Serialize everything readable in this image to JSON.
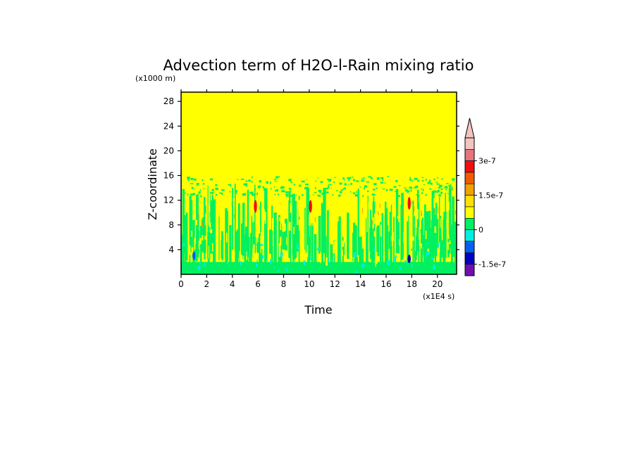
{
  "chart_data": {
    "type": "heatmap",
    "title": "Advection term of H2O-l-Rain mixing ratio",
    "xlabel": "Time",
    "ylabel": "Z-coordinate",
    "x_unit": "(x1E4 s)",
    "y_unit": "(x1000 m)",
    "xlim": [
      0,
      21.5
    ],
    "ylim": [
      0,
      29.5
    ],
    "x_ticks": [
      "0",
      "2",
      "4",
      "6",
      "8",
      "10",
      "12",
      "14",
      "16",
      "18",
      "20"
    ],
    "y_ticks": [
      "4",
      "8",
      "12",
      "16",
      "20",
      "24",
      "28"
    ],
    "background_level": "0 to 1.5e-7 (yellow) above ~16 km",
    "colorbar": {
      "labels": [
        "3e-7",
        "1.5e-7",
        "0",
        "-1.5e-7"
      ],
      "colors_top_to_bottom": [
        "#f4c4c0",
        "#e8747c",
        "#ee1010",
        "#f05a00",
        "#f0a000",
        "#ffe000",
        "#ffff00",
        "#00f060",
        "#00f0e0",
        "#0060f0",
        "#0000c0",
        "#7010b0"
      ],
      "extend": "max"
    },
    "features": [
      {
        "x": 1,
        "y": 3,
        "level": "negative",
        "color": "#0060f0"
      },
      {
        "x": 5.8,
        "y": 11,
        "level": "positive",
        "color": "#ee1010"
      },
      {
        "x": 10.1,
        "y": 11,
        "level": "positive",
        "color": "#ee1010"
      },
      {
        "x": 17.8,
        "y": 11.5,
        "level": "positive",
        "color": "#ee1010"
      },
      {
        "x": 17.8,
        "y": 2.5,
        "level": "negative",
        "color": "#0000c0"
      }
    ]
  }
}
